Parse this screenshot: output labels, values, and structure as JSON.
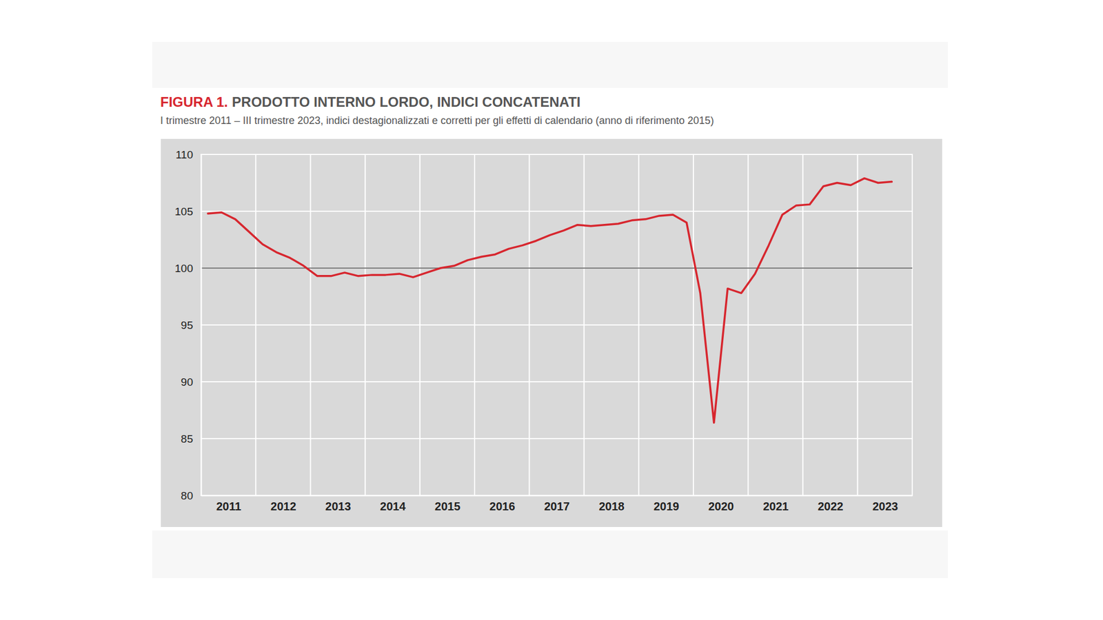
{
  "chart_data": {
    "type": "line",
    "figure_label": "FIGURA 1.",
    "title": "PRODOTTO INTERNO LORDO, INDICI CONCATENATI",
    "subtitle": "I trimestre 2011 – III trimestre 2023, indici destagionalizzati e corretti per gli effetti di calendario (anno di riferimento 2015)",
    "color": "#d7262e",
    "grid": true,
    "reference_line": 100,
    "x": [
      2011.125,
      2011.375,
      2011.625,
      2011.875,
      2012.125,
      2012.375,
      2012.625,
      2012.875,
      2013.125,
      2013.375,
      2013.625,
      2013.875,
      2014.125,
      2014.375,
      2014.625,
      2014.875,
      2015.125,
      2015.375,
      2015.625,
      2015.875,
      2016.125,
      2016.375,
      2016.625,
      2016.875,
      2017.125,
      2017.375,
      2017.625,
      2017.875,
      2018.125,
      2018.375,
      2018.625,
      2018.875,
      2019.125,
      2019.375,
      2019.625,
      2019.875,
      2020.125,
      2020.375,
      2020.625,
      2020.875,
      2021.125,
      2021.375,
      2021.625,
      2021.875,
      2022.125,
      2022.375,
      2022.625,
      2022.875,
      2023.125,
      2023.375,
      2023.625
    ],
    "values": [
      104.8,
      104.9,
      104.3,
      103.2,
      102.1,
      101.4,
      100.9,
      100.2,
      99.3,
      99.3,
      99.6,
      99.3,
      99.4,
      99.4,
      99.5,
      99.2,
      99.6,
      100.0,
      100.2,
      100.7,
      101.0,
      101.2,
      101.7,
      102.0,
      102.4,
      102.9,
      103.3,
      103.8,
      103.7,
      103.8,
      103.9,
      104.2,
      104.3,
      104.6,
      104.7,
      104.0,
      97.8,
      86.4,
      98.2,
      97.8,
      99.5,
      102.0,
      104.7,
      105.5,
      105.6,
      107.2,
      107.5,
      107.3,
      107.9,
      107.5,
      107.6
    ],
    "xlim": [
      2011,
      2024
    ],
    "xticks": [
      {
        "value": 2011.5,
        "label": "2011"
      },
      {
        "value": 2012.5,
        "label": "2012"
      },
      {
        "value": 2013.5,
        "label": "2013"
      },
      {
        "value": 2014.5,
        "label": "2014"
      },
      {
        "value": 2015.5,
        "label": "2015"
      },
      {
        "value": 2016.5,
        "label": "2016"
      },
      {
        "value": 2017.5,
        "label": "2017"
      },
      {
        "value": 2018.5,
        "label": "2018"
      },
      {
        "value": 2019.5,
        "label": "2019"
      },
      {
        "value": 2020.5,
        "label": "2020"
      },
      {
        "value": 2021.5,
        "label": "2021"
      },
      {
        "value": 2022.5,
        "label": "2022"
      },
      {
        "value": 2023.5,
        "label": "2023"
      }
    ],
    "ylim": [
      80,
      110
    ],
    "yticks": [
      80,
      85,
      90,
      95,
      100,
      105,
      110
    ]
  }
}
